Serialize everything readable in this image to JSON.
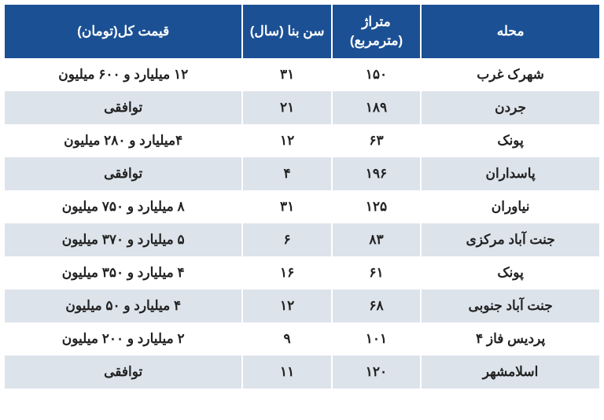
{
  "table": {
    "header_bg": "#1b5094",
    "row_odd_bg": "#ffffff",
    "row_even_bg": "#dde3eb",
    "columns": [
      {
        "key": "neighborhood",
        "label": "محله"
      },
      {
        "key": "area",
        "label": "متراژ (مترمربع)"
      },
      {
        "key": "age",
        "label": "سن بنا (سال)"
      },
      {
        "key": "price",
        "label": "قیمت کل(تومان)"
      }
    ],
    "rows": [
      {
        "neighborhood": "شهرک غرب",
        "area": "۱۵۰",
        "age": "۳۱",
        "price": "۱۲ میلیارد و ۶۰۰ میلیون"
      },
      {
        "neighborhood": "جردن",
        "area": "۱۸۹",
        "age": "۲۱",
        "price": "توافقی"
      },
      {
        "neighborhood": "پونک",
        "area": "۶۳",
        "age": "۱۲",
        "price": "۴میلیارد و ۲۸۰ میلیون"
      },
      {
        "neighborhood": "پاسداران",
        "area": "۱۹۶",
        "age": "۴",
        "price": "توافقی"
      },
      {
        "neighborhood": "نیاوران",
        "area": "۱۲۵",
        "age": "۳۱",
        "price": "۸ میلیارد و ۷۵۰ میلیون"
      },
      {
        "neighborhood": "جنت آباد مرکزی",
        "area": "۸۳",
        "age": "۶",
        "price": "۵ میلیارد و ۳۷۰ میلیون"
      },
      {
        "neighborhood": "پونک",
        "area": "۶۱",
        "age": "۱۶",
        "price": "۴ میلیارد و ۳۵۰ میلیون"
      },
      {
        "neighborhood": "جنت آباد جنوبی",
        "area": "۶۸",
        "age": "۱۲",
        "price": "۴ میلیارد و ۵۰ میلیون"
      },
      {
        "neighborhood": "پردیس فاز ۴",
        "area": "۱۰۱",
        "age": "۹",
        "price": "۲ میلیارد و ۲۰۰ میلیون"
      },
      {
        "neighborhood": "اسلامشهر",
        "area": "۱۲۰",
        "age": "۱۱",
        "price": "توافقی"
      }
    ]
  }
}
